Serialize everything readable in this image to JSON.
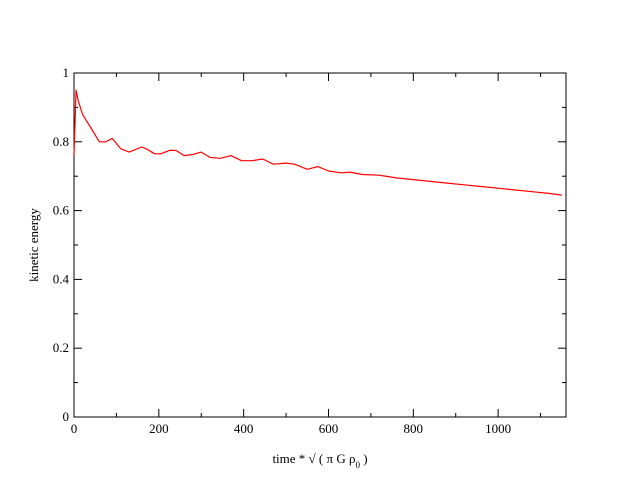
{
  "chart_data": {
    "type": "line",
    "title": "",
    "xlabel": "time * √ ( π G ρ₀ )",
    "ylabel": "kinetic energy",
    "xlim": [
      0,
      1160
    ],
    "ylim": [
      0,
      1
    ],
    "x_ticks": [
      0,
      200,
      400,
      600,
      800,
      1000
    ],
    "x_tick_labels": [
      "0",
      "200",
      "400",
      "600",
      "800",
      "1000"
    ],
    "y_ticks": [
      0,
      0.2,
      0.4,
      0.6,
      0.8,
      1
    ],
    "y_tick_labels": [
      "0",
      "0.2",
      "0.4",
      "0.6",
      "0.8",
      "1"
    ],
    "grid": false,
    "legend": "none",
    "series": [
      {
        "color": "#ff0000",
        "points": [
          [
            0,
            0.76
          ],
          [
            5,
            0.95
          ],
          [
            10,
            0.92
          ],
          [
            20,
            0.88
          ],
          [
            30,
            0.86
          ],
          [
            40,
            0.84
          ],
          [
            50,
            0.82
          ],
          [
            60,
            0.8
          ],
          [
            75,
            0.8
          ],
          [
            90,
            0.81
          ],
          [
            110,
            0.78
          ],
          [
            130,
            0.77
          ],
          [
            160,
            0.785
          ],
          [
            170,
            0.78
          ],
          [
            190,
            0.765
          ],
          [
            205,
            0.765
          ],
          [
            225,
            0.775
          ],
          [
            240,
            0.775
          ],
          [
            260,
            0.76
          ],
          [
            280,
            0.763
          ],
          [
            300,
            0.77
          ],
          [
            320,
            0.755
          ],
          [
            345,
            0.752
          ],
          [
            370,
            0.76
          ],
          [
            395,
            0.745
          ],
          [
            420,
            0.745
          ],
          [
            445,
            0.75
          ],
          [
            470,
            0.735
          ],
          [
            500,
            0.738
          ],
          [
            520,
            0.735
          ],
          [
            550,
            0.72
          ],
          [
            575,
            0.728
          ],
          [
            600,
            0.715
          ],
          [
            630,
            0.71
          ],
          [
            650,
            0.712
          ],
          [
            680,
            0.705
          ],
          [
            720,
            0.703
          ],
          [
            760,
            0.695
          ],
          [
            800,
            0.69
          ],
          [
            840,
            0.685
          ],
          [
            880,
            0.68
          ],
          [
            920,
            0.675
          ],
          [
            960,
            0.67
          ],
          [
            1000,
            0.665
          ],
          [
            1040,
            0.66
          ],
          [
            1080,
            0.655
          ],
          [
            1120,
            0.65
          ],
          [
            1150,
            0.645
          ]
        ]
      }
    ]
  }
}
